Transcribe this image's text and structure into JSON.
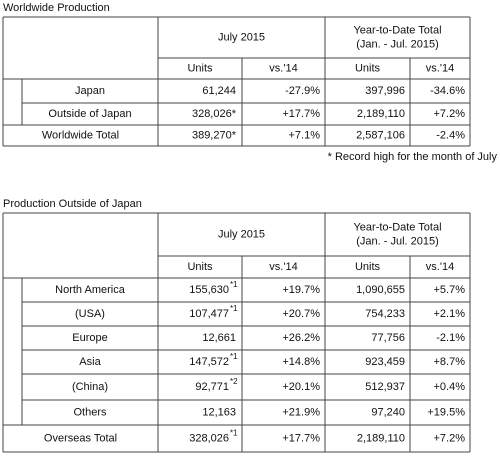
{
  "sections": [
    {
      "title": "Worldwide Production",
      "table": {
        "header": {
          "period": "July 2015",
          "ytd": [
            "Year-to-Date Total",
            "(Jan. - Jul. 2015)"
          ],
          "columns": [
            "Units",
            "vs.'14",
            "Units",
            "vs.'14"
          ]
        },
        "rows": [
          {
            "label": "Japan",
            "cells": [
              {
                "text": "61,244"
              },
              "-27.9%",
              "397,996",
              "-34.6%"
            ]
          },
          {
            "label": "Outside of Japan",
            "cells": [
              {
                "text": "328,026*"
              },
              "+17.7%",
              "2,189,110",
              "+7.2%"
            ]
          }
        ],
        "total": {
          "label": "Worldwide Total",
          "cells": [
            {
              "text": "389,270*"
            },
            "+7.1%",
            "2,587,106",
            "-2.4%"
          ]
        }
      },
      "note": "* Record high for the month of July"
    },
    {
      "title": "Production Outside of Japan",
      "table": {
        "header": {
          "period": "July 2015",
          "ytd": [
            "Year-to-Date Total",
            "(Jan. - Jul. 2015)"
          ],
          "columns": [
            "Units",
            "vs.'14",
            "Units",
            "vs.'14"
          ]
        },
        "rows": [
          {
            "label": "North America",
            "cells": [
              {
                "text": "155,630",
                "sup": "*1"
              },
              "+19.7%",
              "1,090,655",
              "+5.7%"
            ]
          },
          {
            "label": "(USA)",
            "cells": [
              {
                "text": "107,477",
                "sup": "*1"
              },
              "+20.7%",
              "754,233",
              "+2.1%"
            ]
          },
          {
            "label": "Europe",
            "cells": [
              {
                "text": "12,661"
              },
              "+26.2%",
              "77,756",
              "-2.1%"
            ]
          },
          {
            "label": "Asia",
            "cells": [
              {
                "text": "147,572",
                "sup": "*1"
              },
              "+14.8%",
              "923,459",
              "+8.7%"
            ]
          },
          {
            "label": "(China)",
            "cells": [
              {
                "text": "92,771",
                "sup": "*2"
              },
              "+20.1%",
              "512,937",
              "+0.4%"
            ]
          },
          {
            "label": "Others",
            "cells": [
              {
                "text": "12,163"
              },
              "+21.9%",
              "97,240",
              "+19.5%"
            ]
          }
        ],
        "total": {
          "label": "Overseas Total",
          "cells": [
            {
              "text": "328,026",
              "sup": "*1"
            },
            "+17.7%",
            "2,189,110",
            "+7.2%"
          ]
        }
      }
    }
  ]
}
